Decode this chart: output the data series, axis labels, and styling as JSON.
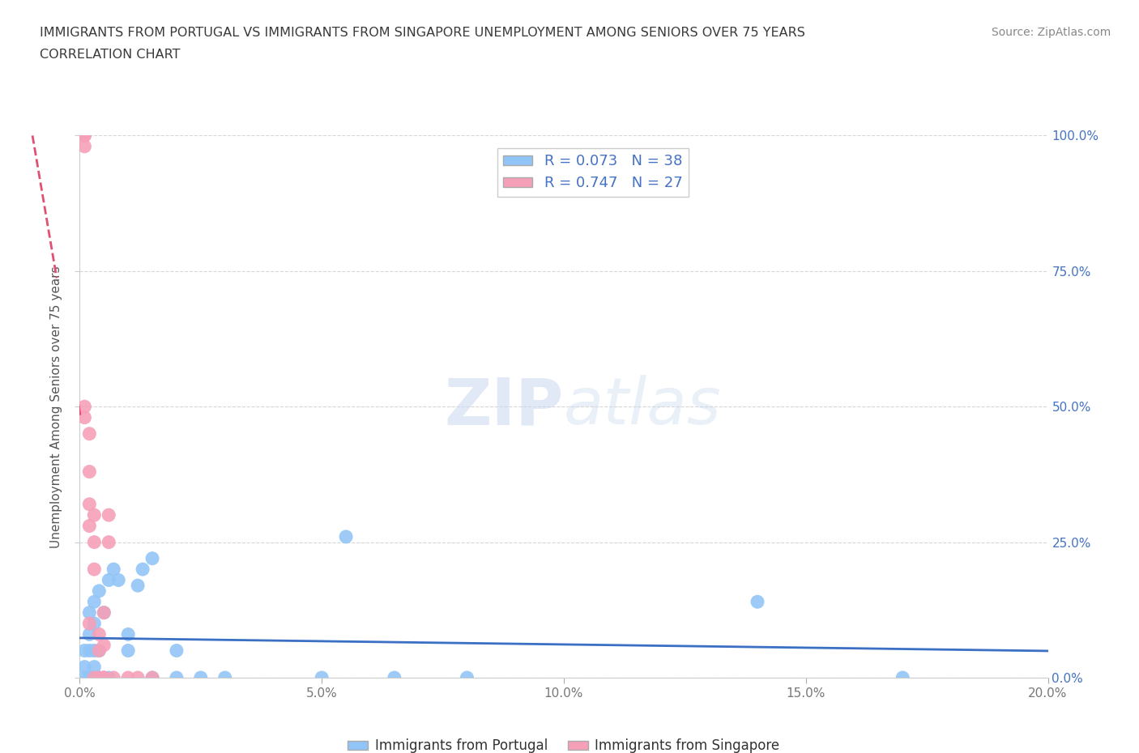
{
  "title_line1": "IMMIGRANTS FROM PORTUGAL VS IMMIGRANTS FROM SINGAPORE UNEMPLOYMENT AMONG SENIORS OVER 75 YEARS",
  "title_line2": "CORRELATION CHART",
  "source_text": "Source: ZipAtlas.com",
  "ylabel": "Unemployment Among Seniors over 75 years",
  "xlim": [
    0.0,
    0.2
  ],
  "ylim": [
    0.0,
    1.0
  ],
  "xticks": [
    0.0,
    0.05,
    0.1,
    0.15,
    0.2
  ],
  "xticklabels": [
    "0.0%",
    "5.0%",
    "10.0%",
    "15.0%",
    "20.0%"
  ],
  "yticks": [
    0.0,
    0.25,
    0.5,
    0.75,
    1.0
  ],
  "yticklabels": [
    "0.0%",
    "25.0%",
    "50.0%",
    "75.0%",
    "100.0%"
  ],
  "portugal_color": "#92c5f7",
  "singapore_color": "#f5a0b8",
  "portugal_trendline_color": "#3a6fc4",
  "singapore_trendline_color": "#e05070",
  "R_portugal": 0.073,
  "N_portugal": 38,
  "R_singapore": 0.747,
  "N_singapore": 27,
  "legend_label_portugal": "Immigrants from Portugal",
  "legend_label_singapore": "Immigrants from Singapore",
  "watermark_zip": "ZIP",
  "watermark_atlas": "atlas",
  "background_color": "#ffffff",
  "grid_color": "#cccccc",
  "title_color": "#3a3a3a",
  "axis_label_color": "#555555",
  "tick_label_color_right": "#4472c4",
  "tick_label_color_bottom": "#777777",
  "portugal_x": [
    0.001,
    0.001,
    0.001,
    0.002,
    0.002,
    0.002,
    0.002,
    0.002,
    0.003,
    0.003,
    0.003,
    0.003,
    0.003,
    0.004,
    0.004,
    0.004,
    0.005,
    0.005,
    0.006,
    0.006,
    0.007,
    0.008,
    0.01,
    0.01,
    0.012,
    0.013,
    0.015,
    0.015,
    0.02,
    0.02,
    0.025,
    0.03,
    0.05,
    0.055,
    0.065,
    0.08,
    0.14,
    0.17
  ],
  "portugal_y": [
    0.0,
    0.02,
    0.05,
    0.0,
    0.0,
    0.05,
    0.08,
    0.12,
    0.0,
    0.02,
    0.05,
    0.1,
    0.14,
    0.0,
    0.05,
    0.16,
    0.0,
    0.12,
    0.0,
    0.18,
    0.2,
    0.18,
    0.05,
    0.08,
    0.17,
    0.2,
    0.0,
    0.22,
    0.0,
    0.05,
    0.0,
    0.0,
    0.0,
    0.26,
    0.0,
    0.0,
    0.14,
    0.0
  ],
  "singapore_x": [
    0.001,
    0.001,
    0.001,
    0.001,
    0.001,
    0.002,
    0.002,
    0.002,
    0.002,
    0.002,
    0.003,
    0.003,
    0.003,
    0.003,
    0.004,
    0.004,
    0.004,
    0.005,
    0.005,
    0.005,
    0.005,
    0.006,
    0.006,
    0.007,
    0.01,
    0.012,
    0.015
  ],
  "singapore_y": [
    0.98,
    1.0,
    1.0,
    0.5,
    0.48,
    0.45,
    0.38,
    0.32,
    0.28,
    0.1,
    0.3,
    0.25,
    0.2,
    0.0,
    0.0,
    0.05,
    0.08,
    0.0,
    0.12,
    0.0,
    0.06,
    0.3,
    0.25,
    0.0,
    0.0,
    0.0,
    0.0
  ]
}
